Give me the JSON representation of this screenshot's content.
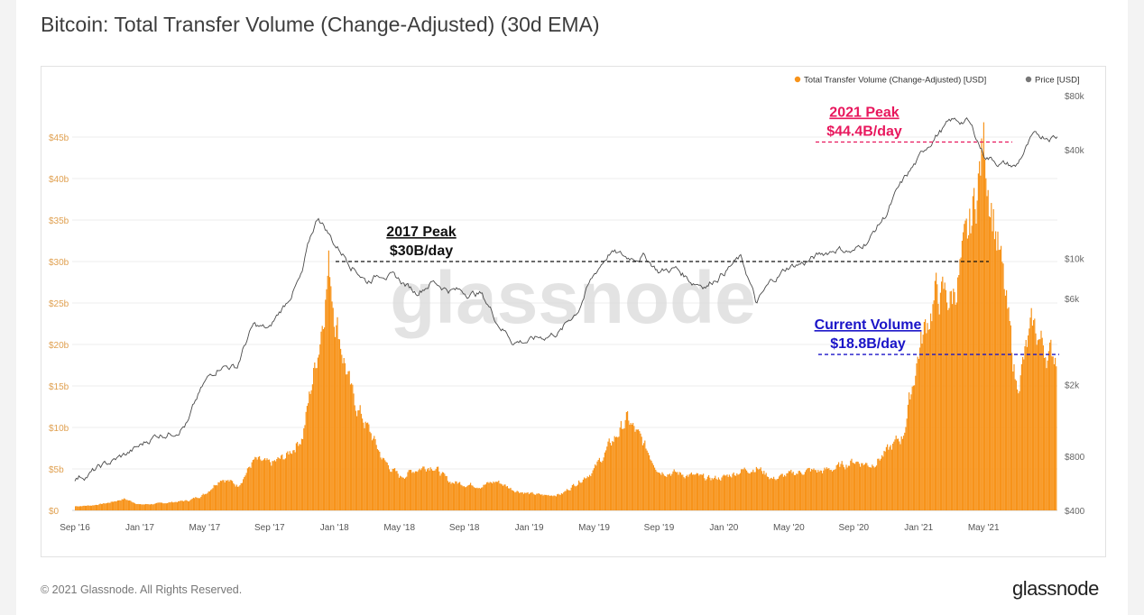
{
  "title": "Bitcoin: Total Transfer Volume (Change-Adjusted) (30d EMA)",
  "footer": {
    "copyright": "© 2021 Glassnode. All Rights Reserved.",
    "brand": "glassnode"
  },
  "watermark": "glassnode",
  "colors": {
    "volume": "#f7931a",
    "price": "#4a4a4a",
    "peak2021": "#e8175d",
    "current": "#1a14c8",
    "peak2017": "#111111",
    "left_axis": "#e0a050",
    "right_axis": "#666666"
  },
  "chart_data": {
    "type": "area",
    "title": "Bitcoin: Total Transfer Volume (Change-Adjusted) (30d EMA)",
    "x_ticks": [
      "Sep '16",
      "Jan '17",
      "May '17",
      "Sep '17",
      "Jan '18",
      "May '18",
      "Sep '18",
      "Jan '19",
      "May '19",
      "Sep '19",
      "Jan '20",
      "May '20",
      "Sep '20",
      "Jan '21",
      "May '21"
    ],
    "y_left": {
      "ticks": [
        "$0",
        "$5b",
        "$10b",
        "$15b",
        "$20b",
        "$25b",
        "$30b",
        "$35b",
        "$40b",
        "$45b"
      ],
      "range": [
        0,
        50
      ]
    },
    "y_right": {
      "scale": "log",
      "ticks": [
        "$400",
        "$800",
        "$2k",
        "$6k",
        "$10k",
        "$40k",
        "$80k"
      ],
      "range": [
        400,
        80000
      ]
    },
    "legend": {
      "position": "top-right",
      "items": [
        "Total Transfer Volume (Change-Adjusted) [USD]",
        "Price [USD]"
      ]
    },
    "series": [
      {
        "name": "Total Transfer Volume (Change-Adjusted) [USD]",
        "axis": "left",
        "unit": "billion USD",
        "points": [
          [
            "2016-09",
            0.5
          ],
          [
            "2016-10",
            0.6
          ],
          [
            "2016-11",
            0.9
          ],
          [
            "2016-12",
            1.4
          ],
          [
            "2017-01",
            0.7
          ],
          [
            "2017-02",
            0.8
          ],
          [
            "2017-03",
            1.0
          ],
          [
            "2017-04",
            1.2
          ],
          [
            "2017-05",
            2.0
          ],
          [
            "2017-06",
            4.0
          ],
          [
            "2017-07",
            3.0
          ],
          [
            "2017-08",
            6.0
          ],
          [
            "2017-09",
            5.5
          ],
          [
            "2017-10",
            6.5
          ],
          [
            "2017-11",
            9.0
          ],
          [
            "2017-12",
            20.0
          ],
          [
            "2017-12-20",
            29.8
          ],
          [
            "2018-01",
            24.0
          ],
          [
            "2018-02",
            14.0
          ],
          [
            "2018-03",
            10.0
          ],
          [
            "2018-04",
            6.0
          ],
          [
            "2018-05",
            4.0
          ],
          [
            "2018-06",
            5.0
          ],
          [
            "2018-07",
            5.5
          ],
          [
            "2018-08",
            3.5
          ],
          [
            "2018-09",
            3.2
          ],
          [
            "2018-10",
            3.0
          ],
          [
            "2018-11",
            3.5
          ],
          [
            "2018-12",
            2.5
          ],
          [
            "2019-01",
            2.0
          ],
          [
            "2019-02",
            1.8
          ],
          [
            "2019-03",
            2.0
          ],
          [
            "2019-04",
            3.5
          ],
          [
            "2019-05",
            5.0
          ],
          [
            "2019-06",
            8.0
          ],
          [
            "2019-07",
            11.0
          ],
          [
            "2019-08",
            8.0
          ],
          [
            "2019-09",
            4.8
          ],
          [
            "2019-10",
            4.5
          ],
          [
            "2019-11",
            4.2
          ],
          [
            "2019-12",
            3.8
          ],
          [
            "2020-01",
            4.0
          ],
          [
            "2020-02",
            4.8
          ],
          [
            "2020-03",
            5.2
          ],
          [
            "2020-04",
            3.8
          ],
          [
            "2020-05",
            4.3
          ],
          [
            "2020-06",
            4.8
          ],
          [
            "2020-07",
            4.7
          ],
          [
            "2020-08",
            5.2
          ],
          [
            "2020-09",
            6.0
          ],
          [
            "2020-10",
            5.5
          ],
          [
            "2020-11",
            7.0
          ],
          [
            "2020-12",
            9.0
          ],
          [
            "2021-01",
            19.5
          ],
          [
            "2021-02",
            26.0
          ],
          [
            "2021-03",
            25.5
          ],
          [
            "2021-04",
            32.0
          ],
          [
            "2021-05",
            44.4
          ],
          [
            "2021-06",
            30.0
          ],
          [
            "2021-07",
            15.0
          ],
          [
            "2021-08",
            22.0
          ],
          [
            "2021-09",
            18.8
          ]
        ]
      },
      {
        "name": "Price [USD]",
        "axis": "right",
        "unit": "USD",
        "points": [
          [
            "2016-09",
            600
          ],
          [
            "2016-10",
            650
          ],
          [
            "2016-11",
            720
          ],
          [
            "2016-12",
            800
          ],
          [
            "2017-01",
            900
          ],
          [
            "2017-02",
            1050
          ],
          [
            "2017-03",
            1100
          ],
          [
            "2017-04",
            1250
          ],
          [
            "2017-05",
            2000
          ],
          [
            "2017-06",
            2600
          ],
          [
            "2017-07",
            2500
          ],
          [
            "2017-08",
            4200
          ],
          [
            "2017-09",
            4000
          ],
          [
            "2017-10",
            5600
          ],
          [
            "2017-11",
            8000
          ],
          [
            "2017-12",
            17000
          ],
          [
            "2018-01",
            12000
          ],
          [
            "2018-02",
            9500
          ],
          [
            "2018-03",
            7500
          ],
          [
            "2018-04",
            8500
          ],
          [
            "2018-05",
            7500
          ],
          [
            "2018-06",
            6500
          ],
          [
            "2018-07",
            7500
          ],
          [
            "2018-08",
            6800
          ],
          [
            "2018-09",
            6500
          ],
          [
            "2018-10",
            6400
          ],
          [
            "2018-11",
            4500
          ],
          [
            "2018-12",
            3500
          ],
          [
            "2019-01",
            3500
          ],
          [
            "2019-02",
            3700
          ],
          [
            "2019-03",
            4000
          ],
          [
            "2019-04",
            5200
          ],
          [
            "2019-05",
            8000
          ],
          [
            "2019-06",
            11000
          ],
          [
            "2019-07",
            10000
          ],
          [
            "2019-08",
            10500
          ],
          [
            "2019-09",
            8500
          ],
          [
            "2019-10",
            8800
          ],
          [
            "2019-11",
            7500
          ],
          [
            "2019-12",
            7200
          ],
          [
            "2020-01",
            8500
          ],
          [
            "2020-02",
            10000
          ],
          [
            "2020-03",
            5500
          ],
          [
            "2020-04",
            7500
          ],
          [
            "2020-05",
            9000
          ],
          [
            "2020-06",
            9500
          ],
          [
            "2020-07",
            10500
          ],
          [
            "2020-08",
            11500
          ],
          [
            "2020-09",
            10800
          ],
          [
            "2020-10",
            13000
          ],
          [
            "2020-11",
            17500
          ],
          [
            "2020-12",
            26000
          ],
          [
            "2021-01",
            35000
          ],
          [
            "2021-02",
            48000
          ],
          [
            "2021-03",
            57000
          ],
          [
            "2021-04",
            58000
          ],
          [
            "2021-05",
            38000
          ],
          [
            "2021-06",
            34000
          ],
          [
            "2021-07",
            32000
          ],
          [
            "2021-08",
            46000
          ],
          [
            "2021-09",
            48000
          ]
        ]
      }
    ],
    "annotations": [
      {
        "id": "peak2017",
        "line1": "2017 Peak",
        "line2": "$30B/day",
        "value": 30
      },
      {
        "id": "peak2021",
        "line1": "2021 Peak",
        "line2": "$44.4B/day",
        "value": 44.4
      },
      {
        "id": "current",
        "line1": "Current Volume",
        "line2": "$18.8B/day",
        "value": 18.8
      }
    ]
  }
}
